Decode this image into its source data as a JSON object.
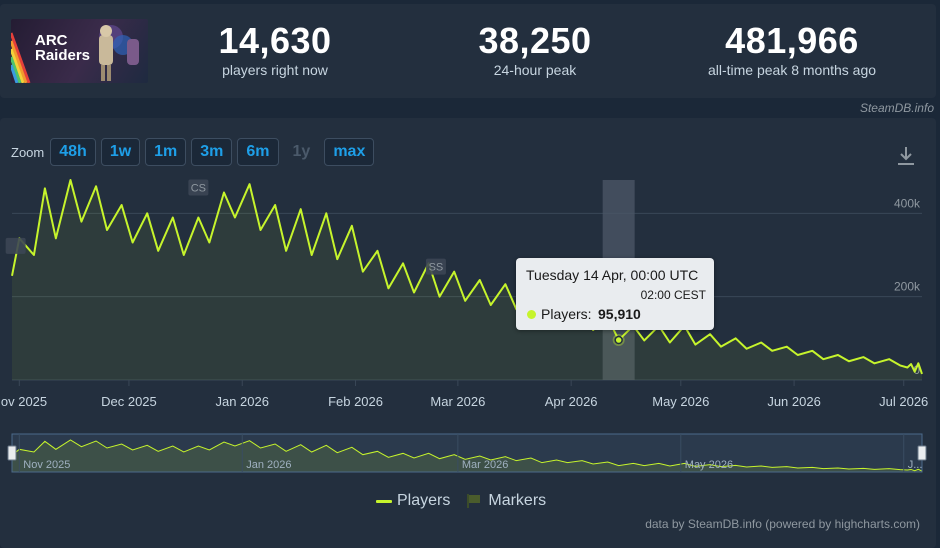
{
  "header": {
    "game_art_alt": "ARC Raiders",
    "logo_line1": "ARC",
    "logo_line2": "Raiders",
    "stats": [
      {
        "value": "14,630",
        "label": "players right now"
      },
      {
        "value": "38,250",
        "label": "24-hour peak"
      },
      {
        "value": "481,966",
        "label": "all-time peak 8 months ago"
      }
    ],
    "watermark": "SteamDB.info"
  },
  "zoom": {
    "label": "Zoom",
    "buttons": [
      "48h",
      "1w",
      "1m",
      "3m",
      "6m",
      "1y",
      "max"
    ],
    "disabled": [
      "1y"
    ]
  },
  "tooltip": {
    "date": "Tuesday 14 Apr, 00:00 UTC",
    "local": "02:00 CEST",
    "series": "Players:",
    "value": "95,910"
  },
  "legend": {
    "players": "Players",
    "markers": "Markers"
  },
  "credits": "data by SteamDB.info (powered by highcharts.com)",
  "colors": {
    "series": "#c6f42c",
    "accent": "#1e9fe8",
    "background": "#232f3e"
  },
  "chart_data": {
    "type": "line",
    "series": [
      {
        "name": "Players"
      }
    ],
    "y_ticks": [
      {
        "value": 0,
        "label": "0"
      },
      {
        "value": 200000,
        "label": "200k"
      },
      {
        "value": 400000,
        "label": "400k"
      }
    ],
    "ylim": [
      0,
      480000
    ],
    "x_ticks": [
      "Nov 2025",
      "Dec 2025",
      "Jan 2026",
      "Feb 2026",
      "Mar 2026",
      "Apr 2026",
      "May 2026",
      "Jun 2026",
      "Jul 2026"
    ],
    "x_tick_dates": [
      "2025-11-01",
      "2025-12-01",
      "2026-01-01",
      "2026-02-01",
      "2026-03-01",
      "2026-04-01",
      "2026-05-01",
      "2026-06-01",
      "2026-07-01"
    ],
    "x_range": [
      "2025-10-30",
      "2026-07-06"
    ],
    "daily_peaks": [
      {
        "date": "2025-10-30",
        "players": 250000
      },
      {
        "date": "2025-11-01",
        "players": 340000
      },
      {
        "date": "2025-11-05",
        "players": 300000
      },
      {
        "date": "2025-11-08",
        "players": 460000
      },
      {
        "date": "2025-11-11",
        "players": 340000
      },
      {
        "date": "2025-11-15",
        "players": 480000
      },
      {
        "date": "2025-11-18",
        "players": 380000
      },
      {
        "date": "2025-11-22",
        "players": 465000
      },
      {
        "date": "2025-11-25",
        "players": 360000
      },
      {
        "date": "2025-11-29",
        "players": 420000
      },
      {
        "date": "2025-12-02",
        "players": 330000
      },
      {
        "date": "2025-12-06",
        "players": 400000
      },
      {
        "date": "2025-12-09",
        "players": 310000
      },
      {
        "date": "2025-12-13",
        "players": 390000
      },
      {
        "date": "2025-12-16",
        "players": 300000
      },
      {
        "date": "2025-12-20",
        "players": 390000
      },
      {
        "date": "2025-12-23",
        "players": 330000
      },
      {
        "date": "2025-12-27",
        "players": 450000
      },
      {
        "date": "2025-12-30",
        "players": 390000
      },
      {
        "date": "2026-01-03",
        "players": 470000
      },
      {
        "date": "2026-01-06",
        "players": 360000
      },
      {
        "date": "2026-01-10",
        "players": 420000
      },
      {
        "date": "2026-01-13",
        "players": 310000
      },
      {
        "date": "2026-01-17",
        "players": 410000
      },
      {
        "date": "2026-01-20",
        "players": 300000
      },
      {
        "date": "2026-01-24",
        "players": 400000
      },
      {
        "date": "2026-01-27",
        "players": 290000
      },
      {
        "date": "2026-01-31",
        "players": 370000
      },
      {
        "date": "2026-02-03",
        "players": 260000
      },
      {
        "date": "2026-02-07",
        "players": 310000
      },
      {
        "date": "2026-02-10",
        "players": 220000
      },
      {
        "date": "2026-02-14",
        "players": 280000
      },
      {
        "date": "2026-02-17",
        "players": 210000
      },
      {
        "date": "2026-02-21",
        "players": 280000
      },
      {
        "date": "2026-02-24",
        "players": 200000
      },
      {
        "date": "2026-02-28",
        "players": 260000
      },
      {
        "date": "2026-03-03",
        "players": 190000
      },
      {
        "date": "2026-03-07",
        "players": 240000
      },
      {
        "date": "2026-03-10",
        "players": 180000
      },
      {
        "date": "2026-03-14",
        "players": 230000
      },
      {
        "date": "2026-03-17",
        "players": 170000
      },
      {
        "date": "2026-03-21",
        "players": 210000
      },
      {
        "date": "2026-03-24",
        "players": 140000
      },
      {
        "date": "2026-03-28",
        "players": 180000
      },
      {
        "date": "2026-03-31",
        "players": 140000
      },
      {
        "date": "2026-04-04",
        "players": 170000
      },
      {
        "date": "2026-04-07",
        "players": 120000
      },
      {
        "date": "2026-04-11",
        "players": 150000
      },
      {
        "date": "2026-04-14",
        "players": 95910
      },
      {
        "date": "2026-04-18",
        "players": 130000
      },
      {
        "date": "2026-04-21",
        "players": 95000
      },
      {
        "date": "2026-04-25",
        "players": 130000
      },
      {
        "date": "2026-04-28",
        "players": 90000
      },
      {
        "date": "2026-05-02",
        "players": 130000
      },
      {
        "date": "2026-05-05",
        "players": 85000
      },
      {
        "date": "2026-05-09",
        "players": 110000
      },
      {
        "date": "2026-05-12",
        "players": 80000
      },
      {
        "date": "2026-05-16",
        "players": 100000
      },
      {
        "date": "2026-05-19",
        "players": 75000
      },
      {
        "date": "2026-05-23",
        "players": 90000
      },
      {
        "date": "2026-05-26",
        "players": 70000
      },
      {
        "date": "2026-05-30",
        "players": 80000
      },
      {
        "date": "2026-06-02",
        "players": 60000
      },
      {
        "date": "2026-06-06",
        "players": 70000
      },
      {
        "date": "2026-06-09",
        "players": 50000
      },
      {
        "date": "2026-06-13",
        "players": 60000
      },
      {
        "date": "2026-06-16",
        "players": 45000
      },
      {
        "date": "2026-06-20",
        "players": 55000
      },
      {
        "date": "2026-06-23",
        "players": 40000
      },
      {
        "date": "2026-06-27",
        "players": 50000
      },
      {
        "date": "2026-06-30",
        "players": 35000
      },
      {
        "date": "2026-07-02",
        "players": 30000
      },
      {
        "date": "2026-07-03",
        "players": 38250
      },
      {
        "date": "2026-07-04",
        "players": 20000
      },
      {
        "date": "2026-07-05",
        "players": 40000
      },
      {
        "date": "2026-07-06",
        "players": 14630
      }
    ],
    "markers": [
      {
        "label": "",
        "date": "2025-10-31"
      },
      {
        "label": "CS",
        "date": "2025-12-20"
      },
      {
        "label": "SS",
        "date": "2026-02-23"
      }
    ],
    "navigator_ticks": [
      "Nov 2025",
      "Jan 2026",
      "Mar 2026",
      "May 2026",
      "Jul 2026"
    ],
    "navigator_ticks_shown": [
      "Nov 2025",
      "Jan 2026",
      "Mar 2026",
      "May 2026",
      "J..."
    ],
    "highlight_date": "2026-04-14",
    "grid": true,
    "legend_position": "bottom"
  }
}
